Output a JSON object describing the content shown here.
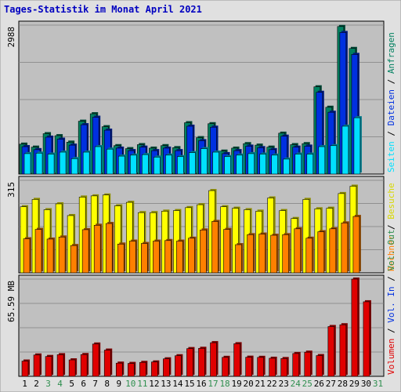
{
  "chart_data": {
    "type": "bar",
    "title": "Tages-Statistik im Monat April 2021",
    "categories": [
      "1",
      "2",
      "3",
      "4",
      "5",
      "6",
      "7",
      "8",
      "9",
      "10",
      "11",
      "12",
      "13",
      "14",
      "15",
      "16",
      "17",
      "18",
      "19",
      "20",
      "21",
      "22",
      "23",
      "24",
      "25",
      "26",
      "27",
      "28",
      "29",
      "30",
      "31"
    ],
    "weekend_days": [
      "3",
      "4",
      "10",
      "11",
      "17",
      "18",
      "24",
      "25",
      "31"
    ],
    "panels": [
      {
        "name": "top",
        "scale_max_label": "2988",
        "ymax": 2988,
        "series": [
          {
            "name": "Anfragen",
            "color": "#008060",
            "values": [
              600,
              540,
              810,
              770,
              640,
              1060,
              1210,
              950,
              570,
              510,
              590,
              520,
              570,
              530,
              1030,
              730,
              1010,
              460,
              520,
              610,
              580,
              540,
              820,
              590,
              610,
              1750,
              1340,
              2960,
              2520
            ]
          },
          {
            "name": "Dateien",
            "color": "#0030e0",
            "values": [
              550,
              490,
              740,
              700,
              580,
              990,
              1140,
              880,
              520,
              470,
              540,
              470,
              520,
              470,
              960,
              670,
              940,
              410,
              470,
              560,
              530,
              490,
              760,
              540,
              560,
              1640,
              1240,
              2840,
              2400
            ]
          },
          {
            "name": "Seiten",
            "color": "#00e0ff",
            "values": [
              410,
              420,
              400,
              440,
              310,
              440,
              550,
              500,
              360,
              380,
              390,
              340,
              380,
              350,
              430,
              510,
              440,
              350,
              380,
              410,
              400,
              380,
              300,
              400,
              400,
              550,
              570,
              960,
              1130
            ]
          }
        ],
        "legend_order": [
          "Seiten",
          "Dateien",
          "Anfragen"
        ]
      },
      {
        "name": "middle",
        "scale_max_label": "315",
        "ymax": 315,
        "series": [
          {
            "name": "Besuche",
            "color": "#ffff00",
            "values": [
              225,
              250,
              215,
              235,
              195,
              258,
              262,
              265,
              228,
              240,
              205,
              205,
              210,
              212,
              222,
              232,
              280,
              225,
              220,
              215,
              210,
              255,
              212,
              185,
              250,
              218,
              220,
              270,
              295
            ]
          },
          {
            "name": "Rechner",
            "color": "#ff8000",
            "values": [
              116,
              148,
              115,
              122,
              93,
              147,
              162,
              168,
              98,
              108,
              100,
              108,
              110,
              108,
              118,
              146,
              175,
              148,
              96,
              130,
              132,
              128,
              130,
              150,
              118,
              140,
              150,
              170,
              192
            ]
          }
        ],
        "legend_order": [
          "Rechner",
          "Besuche"
        ]
      },
      {
        "name": "bottom",
        "scale_max_label": "65.59 MB",
        "ymax": 65.59,
        "series": [
          {
            "name": "Volumen",
            "color": "#e00000",
            "values": [
              10.3,
              14.4,
              13.4,
              14.6,
              11.1,
              14.7,
              21.8,
              17.7,
              8.9,
              8.7,
              9.4,
              9.7,
              11.8,
              13.9,
              18.7,
              18.9,
              22.7,
              12.8,
              22.0,
              12.9,
              12.8,
              12.2,
              12.0,
              15.4,
              16.3,
              14.0,
              33.6,
              34.8,
              65.6,
              50.3
            ]
          }
        ],
        "legend_order": [
          "Volumen",
          "Vol. In",
          "Vol. Out"
        ],
        "legend_colors": {
          "Vol. In": "#0030e0",
          "Vol. Out": "#2f8f4f"
        }
      }
    ],
    "grid": true
  }
}
